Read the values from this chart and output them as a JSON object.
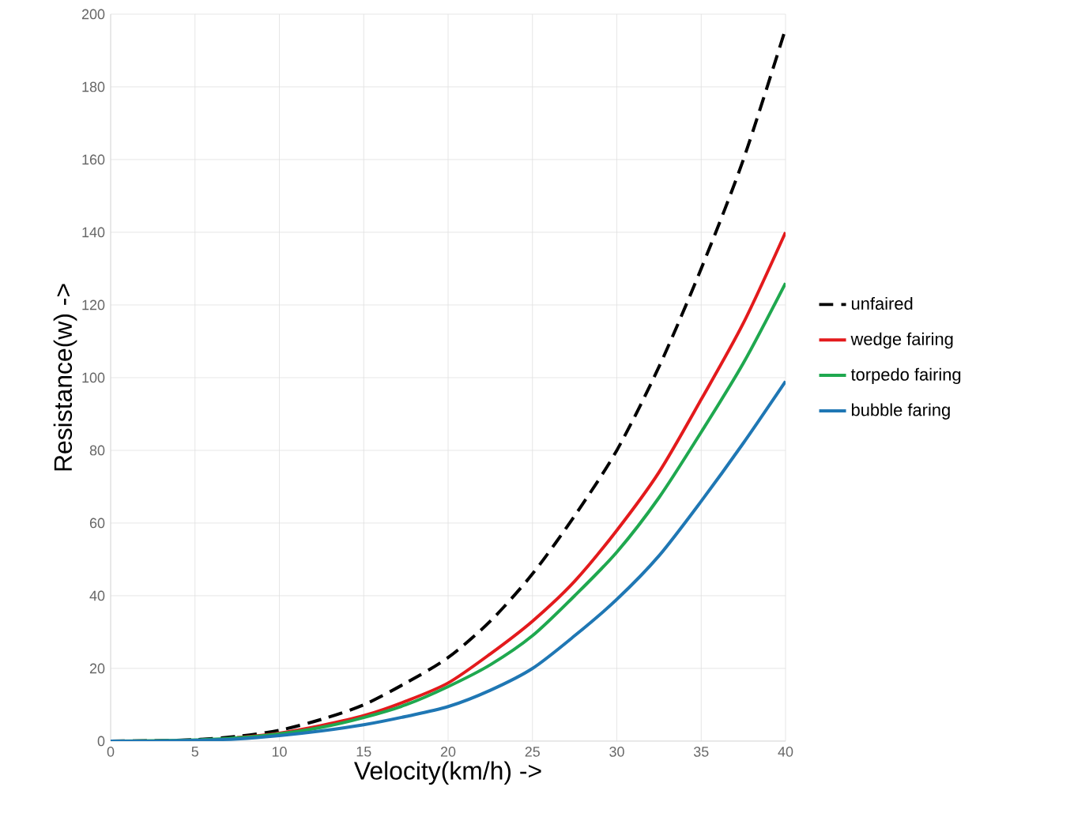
{
  "chart_data": {
    "type": "line",
    "xlabel": "Velocity(km/h) ->",
    "ylabel": "Resistance(w) ->",
    "x": [
      0,
      2.5,
      5,
      7.5,
      10,
      12.5,
      15,
      17.5,
      20,
      22.5,
      25,
      27.5,
      30,
      32.5,
      35,
      37.5,
      40
    ],
    "series": [
      {
        "name": "unfaired",
        "color": "#000000",
        "line_style": "dashed",
        "values": [
          0,
          0.1,
          0.4,
          1.3,
          3,
          6,
          10,
          16,
          23,
          33,
          46,
          62,
          80,
          103,
          130,
          160,
          196
        ]
      },
      {
        "name": "wedge fairing",
        "color": "#e31a1c",
        "values": [
          null,
          null,
          null,
          1,
          2.2,
          4.3,
          7,
          11,
          16,
          24,
          33,
          44,
          58,
          74,
          94,
          115,
          140
        ]
      },
      {
        "name": "torpedo fairing",
        "color": "#1fa84f",
        "values": [
          0,
          0.1,
          0.3,
          0.9,
          2,
          3.8,
          6.5,
          10,
          15,
          21,
          29,
          40,
          52,
          67,
          85,
          104,
          126
        ]
      },
      {
        "name": "bubble faring",
        "color": "#1f77b4",
        "values": [
          0,
          0,
          0.2,
          0.6,
          1.5,
          2.8,
          4.5,
          6.8,
          9.5,
          14,
          20,
          29,
          39,
          51,
          66,
          82,
          99
        ]
      }
    ],
    "xlim": [
      0,
      40
    ],
    "ylim": [
      0,
      200
    ],
    "xticks": [
      0,
      5,
      10,
      15,
      20,
      25,
      30,
      35,
      40
    ],
    "yticks": [
      0,
      20,
      40,
      60,
      80,
      100,
      120,
      140,
      160,
      180,
      200
    ],
    "grid": true,
    "legend": "right",
    "marker": "none"
  }
}
